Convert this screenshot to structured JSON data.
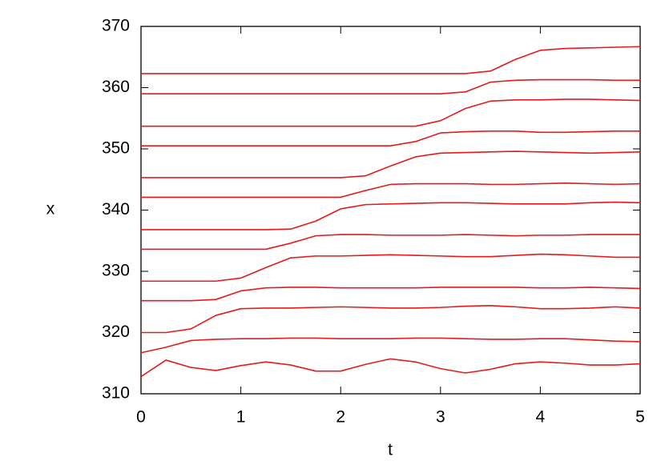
{
  "chart_data": {
    "type": "line",
    "x_label": "t",
    "y_label": "x",
    "x": [
      0,
      0.25,
      0.5,
      0.75,
      1,
      1.25,
      1.5,
      1.75,
      2,
      2.25,
      2.5,
      2.75,
      3,
      3.25,
      3.5,
      3.75,
      4,
      4.25,
      4.5,
      4.75,
      5
    ],
    "xlim": [
      0,
      5
    ],
    "xticks": [
      0,
      1,
      2,
      3,
      4,
      5
    ],
    "ylim": [
      310,
      370
    ],
    "yticks": [
      310,
      320,
      330,
      340,
      350,
      360,
      370
    ],
    "grid": false,
    "series": [
      {
        "color": "#e41a1c",
        "values": [
          312.8,
          315.5,
          314.3,
          313.8,
          314.6,
          315.2,
          314.7,
          313.7,
          313.7,
          314.8,
          315.7,
          315.2,
          314.1,
          313.4,
          314.0,
          314.9,
          315.2,
          315.0,
          314.7,
          314.7,
          314.9
        ]
      },
      {
        "color": "#e41a1c",
        "values": [
          316.7,
          317.6,
          318.7,
          318.9,
          319.0,
          319.0,
          319.1,
          319.1,
          319.0,
          319.0,
          319.0,
          319.1,
          319.1,
          319.0,
          318.9,
          318.9,
          319.0,
          319.0,
          318.8,
          318.6,
          318.5
        ]
      },
      {
        "color": "#e41a1c",
        "values": [
          320.0,
          320.0,
          320.6,
          322.8,
          323.9,
          324.0,
          324.0,
          324.1,
          324.2,
          324.1,
          324.0,
          324.0,
          324.1,
          324.3,
          324.4,
          324.2,
          323.9,
          323.9,
          324.0,
          324.2,
          324.0
        ]
      },
      {
        "color": "#e41a1c",
        "values": [
          325.2,
          325.2,
          325.2,
          325.4,
          326.8,
          327.3,
          327.4,
          327.4,
          327.3,
          327.3,
          327.3,
          327.3,
          327.4,
          327.4,
          327.4,
          327.4,
          327.3,
          327.3,
          327.4,
          327.3,
          327.2
        ]
      },
      {
        "color": "#e41a1c",
        "values": [
          328.4,
          328.4,
          328.4,
          328.4,
          328.9,
          330.6,
          332.2,
          332.5,
          332.5,
          332.6,
          332.7,
          332.6,
          332.5,
          332.4,
          332.4,
          332.6,
          332.8,
          332.7,
          332.5,
          332.3,
          332.3
        ]
      },
      {
        "color": "#e41a1c",
        "values": [
          333.6,
          333.6,
          333.6,
          333.6,
          333.6,
          333.6,
          334.6,
          335.8,
          336.0,
          336.0,
          335.9,
          335.9,
          335.9,
          336.0,
          335.9,
          335.8,
          335.9,
          335.9,
          336.0,
          336.0,
          336.0
        ]
      },
      {
        "color": "#e41a1c",
        "values": [
          336.8,
          336.8,
          336.8,
          336.8,
          336.8,
          336.8,
          336.9,
          338.2,
          340.2,
          340.9,
          341.0,
          341.1,
          341.2,
          341.2,
          341.1,
          341.0,
          341.0,
          341.0,
          341.2,
          341.3,
          341.2
        ]
      },
      {
        "color": "#e41a1c",
        "values": [
          342.1,
          342.1,
          342.1,
          342.1,
          342.1,
          342.1,
          342.1,
          342.1,
          342.1,
          343.2,
          344.2,
          344.3,
          344.3,
          344.3,
          344.2,
          344.2,
          344.3,
          344.4,
          344.3,
          344.2,
          344.3
        ]
      },
      {
        "color": "#e41a1c",
        "values": [
          345.3,
          345.3,
          345.3,
          345.3,
          345.3,
          345.3,
          345.3,
          345.3,
          345.3,
          345.6,
          347.2,
          348.7,
          349.3,
          349.4,
          349.5,
          349.6,
          349.5,
          349.4,
          349.3,
          349.4,
          349.5
        ]
      },
      {
        "color": "#e41a1c",
        "values": [
          350.5,
          350.5,
          350.5,
          350.5,
          350.5,
          350.5,
          350.5,
          350.5,
          350.5,
          350.5,
          350.5,
          351.2,
          352.6,
          352.8,
          352.9,
          352.9,
          352.7,
          352.7,
          352.8,
          352.9,
          352.9
        ]
      },
      {
        "color": "#e41a1c",
        "values": [
          353.7,
          353.7,
          353.7,
          353.7,
          353.7,
          353.7,
          353.7,
          353.7,
          353.7,
          353.7,
          353.7,
          353.7,
          354.6,
          356.6,
          357.8,
          358.0,
          358.0,
          358.1,
          358.1,
          358.0,
          357.9
        ]
      },
      {
        "color": "#e41a1c",
        "values": [
          359.0,
          359.0,
          359.0,
          359.0,
          359.0,
          359.0,
          359.0,
          359.0,
          359.0,
          359.0,
          359.0,
          359.0,
          359.0,
          359.3,
          360.9,
          361.2,
          361.3,
          361.3,
          361.3,
          361.2,
          361.2
        ]
      },
      {
        "color": "#e41a1c",
        "values": [
          362.3,
          362.3,
          362.3,
          362.3,
          362.3,
          362.3,
          362.3,
          362.3,
          362.3,
          362.3,
          362.3,
          362.3,
          362.3,
          362.3,
          362.7,
          364.6,
          366.1,
          366.4,
          366.5,
          366.6,
          366.7
        ]
      }
    ]
  }
}
